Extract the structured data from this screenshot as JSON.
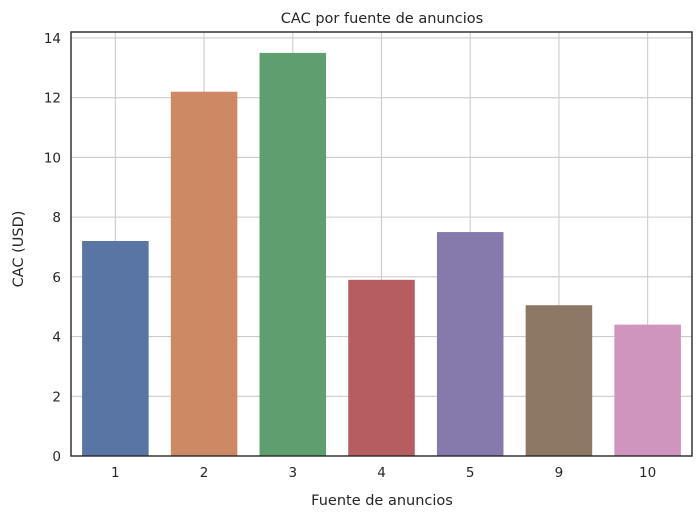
{
  "chart_data": {
    "type": "bar",
    "title": "CAC por fuente de anuncios",
    "xlabel": "Fuente de anuncios",
    "ylabel": "CAC (USD)",
    "categories": [
      "1",
      "2",
      "3",
      "4",
      "5",
      "9",
      "10"
    ],
    "values": [
      7.2,
      12.2,
      13.5,
      5.9,
      7.5,
      5.05,
      4.4
    ],
    "colors": [
      "#5975a4",
      "#cc8963",
      "#5f9e6e",
      "#b55d60",
      "#857aab",
      "#8d7866",
      "#d095bf"
    ],
    "ylim": [
      0,
      14.2
    ],
    "yticks": [
      0,
      2,
      4,
      6,
      8,
      10,
      12,
      14
    ],
    "grid": true,
    "legend": "none"
  }
}
